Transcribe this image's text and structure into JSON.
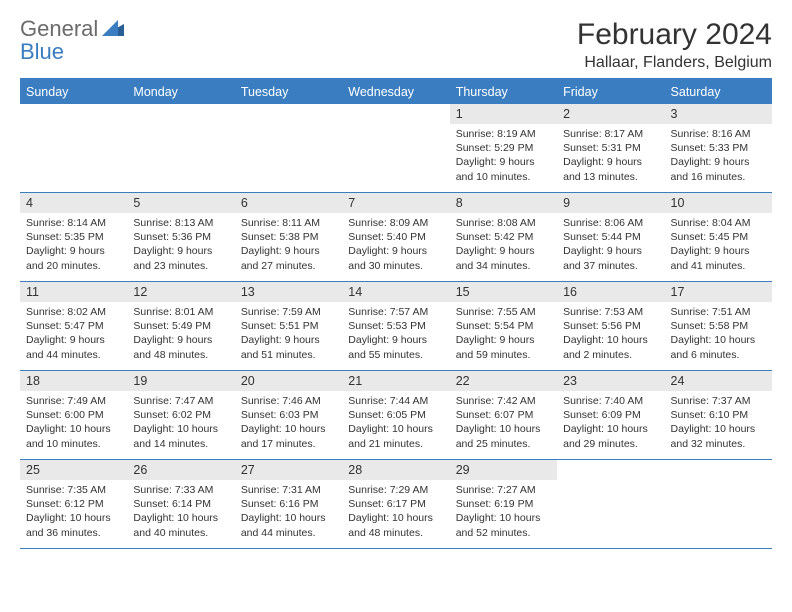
{
  "logo": {
    "text1": "General",
    "text2": "Blue"
  },
  "title": "February 2024",
  "subtitle": "Hallaar, Flanders, Belgium",
  "colors": {
    "header_bg": "#3a7ec1",
    "daynum_bg": "#e9e9e9",
    "text": "#333333",
    "logo_gray": "#6b6b6b",
    "logo_blue": "#3a7ec1",
    "white": "#ffffff"
  },
  "weekdays": [
    "Sunday",
    "Monday",
    "Tuesday",
    "Wednesday",
    "Thursday",
    "Friday",
    "Saturday"
  ],
  "weeks": [
    [
      null,
      null,
      null,
      null,
      {
        "n": "1",
        "sr": "8:19 AM",
        "ss": "5:29 PM",
        "dl": "9 hours and 10 minutes."
      },
      {
        "n": "2",
        "sr": "8:17 AM",
        "ss": "5:31 PM",
        "dl": "9 hours and 13 minutes."
      },
      {
        "n": "3",
        "sr": "8:16 AM",
        "ss": "5:33 PM",
        "dl": "9 hours and 16 minutes."
      }
    ],
    [
      {
        "n": "4",
        "sr": "8:14 AM",
        "ss": "5:35 PM",
        "dl": "9 hours and 20 minutes."
      },
      {
        "n": "5",
        "sr": "8:13 AM",
        "ss": "5:36 PM",
        "dl": "9 hours and 23 minutes."
      },
      {
        "n": "6",
        "sr": "8:11 AM",
        "ss": "5:38 PM",
        "dl": "9 hours and 27 minutes."
      },
      {
        "n": "7",
        "sr": "8:09 AM",
        "ss": "5:40 PM",
        "dl": "9 hours and 30 minutes."
      },
      {
        "n": "8",
        "sr": "8:08 AM",
        "ss": "5:42 PM",
        "dl": "9 hours and 34 minutes."
      },
      {
        "n": "9",
        "sr": "8:06 AM",
        "ss": "5:44 PM",
        "dl": "9 hours and 37 minutes."
      },
      {
        "n": "10",
        "sr": "8:04 AM",
        "ss": "5:45 PM",
        "dl": "9 hours and 41 minutes."
      }
    ],
    [
      {
        "n": "11",
        "sr": "8:02 AM",
        "ss": "5:47 PM",
        "dl": "9 hours and 44 minutes."
      },
      {
        "n": "12",
        "sr": "8:01 AM",
        "ss": "5:49 PM",
        "dl": "9 hours and 48 minutes."
      },
      {
        "n": "13",
        "sr": "7:59 AM",
        "ss": "5:51 PM",
        "dl": "9 hours and 51 minutes."
      },
      {
        "n": "14",
        "sr": "7:57 AM",
        "ss": "5:53 PM",
        "dl": "9 hours and 55 minutes."
      },
      {
        "n": "15",
        "sr": "7:55 AM",
        "ss": "5:54 PM",
        "dl": "9 hours and 59 minutes."
      },
      {
        "n": "16",
        "sr": "7:53 AM",
        "ss": "5:56 PM",
        "dl": "10 hours and 2 minutes."
      },
      {
        "n": "17",
        "sr": "7:51 AM",
        "ss": "5:58 PM",
        "dl": "10 hours and 6 minutes."
      }
    ],
    [
      {
        "n": "18",
        "sr": "7:49 AM",
        "ss": "6:00 PM",
        "dl": "10 hours and 10 minutes."
      },
      {
        "n": "19",
        "sr": "7:47 AM",
        "ss": "6:02 PM",
        "dl": "10 hours and 14 minutes."
      },
      {
        "n": "20",
        "sr": "7:46 AM",
        "ss": "6:03 PM",
        "dl": "10 hours and 17 minutes."
      },
      {
        "n": "21",
        "sr": "7:44 AM",
        "ss": "6:05 PM",
        "dl": "10 hours and 21 minutes."
      },
      {
        "n": "22",
        "sr": "7:42 AM",
        "ss": "6:07 PM",
        "dl": "10 hours and 25 minutes."
      },
      {
        "n": "23",
        "sr": "7:40 AM",
        "ss": "6:09 PM",
        "dl": "10 hours and 29 minutes."
      },
      {
        "n": "24",
        "sr": "7:37 AM",
        "ss": "6:10 PM",
        "dl": "10 hours and 32 minutes."
      }
    ],
    [
      {
        "n": "25",
        "sr": "7:35 AM",
        "ss": "6:12 PM",
        "dl": "10 hours and 36 minutes."
      },
      {
        "n": "26",
        "sr": "7:33 AM",
        "ss": "6:14 PM",
        "dl": "10 hours and 40 minutes."
      },
      {
        "n": "27",
        "sr": "7:31 AM",
        "ss": "6:16 PM",
        "dl": "10 hours and 44 minutes."
      },
      {
        "n": "28",
        "sr": "7:29 AM",
        "ss": "6:17 PM",
        "dl": "10 hours and 48 minutes."
      },
      {
        "n": "29",
        "sr": "7:27 AM",
        "ss": "6:19 PM",
        "dl": "10 hours and 52 minutes."
      },
      null,
      null
    ]
  ]
}
